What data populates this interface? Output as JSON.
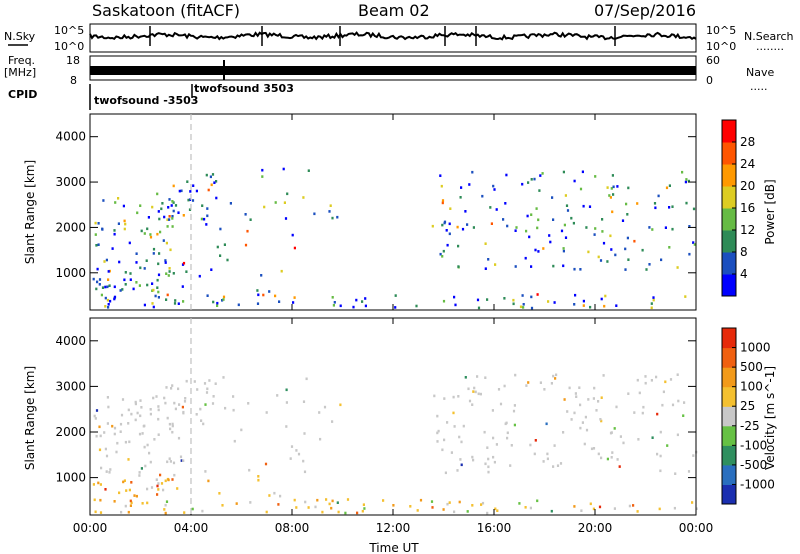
{
  "header": {
    "station": "Saskatoon (fitACF)",
    "beam": "Beam 02",
    "date": "07/Sep/2016"
  },
  "aux_labels": {
    "nsky": "N.Sky",
    "nsky_ticks": [
      "10^5",
      "10^0"
    ],
    "freq": "Freq.",
    "freq_unit": "[MHz]",
    "freq_ticks": [
      "18",
      "8"
    ],
    "cpid": "CPID",
    "nsearch": "N.Search",
    "nsearch_ticks": [
      "10^5",
      "10^0"
    ],
    "nave": "Nave",
    "nave_ticks": [
      "60",
      "0"
    ],
    "cpid_names": [
      "twofsound -3503",
      "twofsound 3503"
    ]
  },
  "colorbars": {
    "power": {
      "label": "Power [dB]",
      "ticks": [
        "28",
        "24",
        "20",
        "16",
        "12",
        "8",
        "4"
      ],
      "colors": [
        "#0000ff",
        "#1b4fbf",
        "#2e8b57",
        "#66bb44",
        "#ddcc22",
        "#ff9900",
        "#ff5500",
        "#ff0000"
      ]
    },
    "velocity": {
      "label": "Velocity [m s^-1]",
      "ticks": [
        "1000",
        "500",
        "100",
        "25",
        "-25",
        "-100",
        "-500",
        "-1000"
      ],
      "colors": [
        "#1b2fb0",
        "#2a6fbf",
        "#2f8f5f",
        "#66c144",
        "#c8c8c8",
        "#f4c030",
        "#f29a1a",
        "#f06010",
        "#e62a0a"
      ]
    }
  },
  "chart_data": [
    {
      "type": "heatmap",
      "title": "Power",
      "xlabel": "",
      "ylabel": "Slant Range [km]",
      "x_ticks": [
        "00:00",
        "04:00",
        "08:00",
        "12:00",
        "16:00",
        "20:00",
        "00:00"
      ],
      "y_ticks": [
        "1000",
        "2000",
        "3000",
        "4000"
      ],
      "ylim": [
        180,
        4500
      ],
      "xlim_hours": [
        0,
        24
      ],
      "cpid_change_hour": 4.0
    },
    {
      "type": "heatmap",
      "title": "Velocity",
      "xlabel": "Time UT",
      "ylabel": "Slant Range [km]",
      "x_ticks": [
        "00:00",
        "04:00",
        "08:00",
        "12:00",
        "16:00",
        "20:00",
        "00:00"
      ],
      "y_ticks": [
        "1000",
        "2000",
        "3000",
        "4000"
      ],
      "ylim": [
        180,
        4500
      ],
      "xlim_hours": [
        0,
        24
      ],
      "cpid_change_hour": 4.0
    }
  ]
}
